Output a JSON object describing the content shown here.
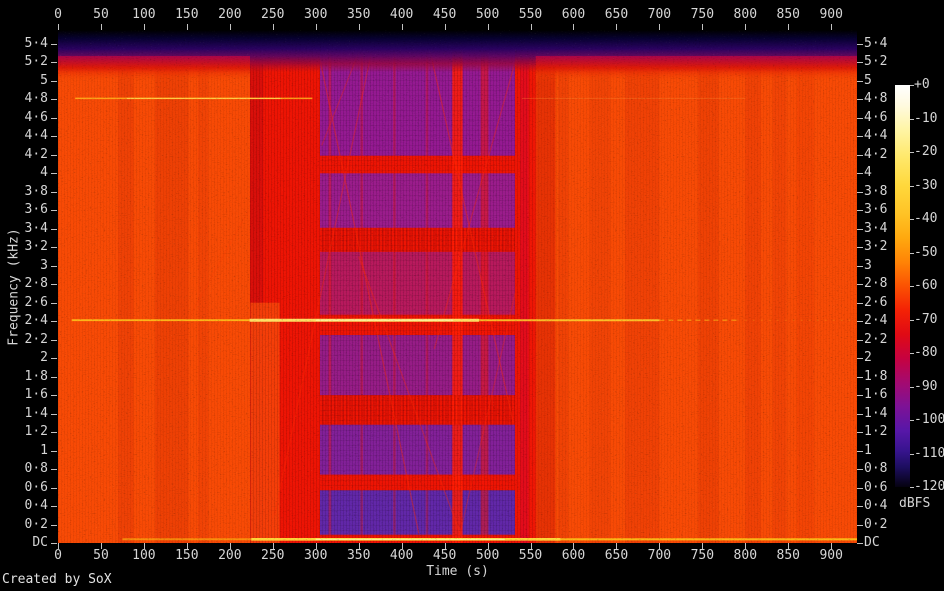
{
  "credit": {
    "text": "Created by SoX"
  },
  "chart_data": {
    "type": "heatmap",
    "subtype": "audio-spectrogram",
    "title": "",
    "xlabel": "Time (s)",
    "ylabel": "Frequency (kHz)",
    "x_range": [
      0,
      930
    ],
    "y_range_khz": [
      0,
      5.55
    ],
    "x_ticks": [
      0,
      50,
      100,
      150,
      200,
      250,
      300,
      350,
      400,
      450,
      500,
      550,
      600,
      650,
      700,
      750,
      800,
      850,
      900
    ],
    "y_tick_labels": [
      "5·4",
      "5·2",
      "5",
      "4·8",
      "4·6",
      "4·4",
      "4·2",
      "4",
      "3·8",
      "3·6",
      "3·4",
      "3·2",
      "3",
      "2·8",
      "2·6",
      "2·4",
      "2·2",
      "2",
      "1·8",
      "1·6",
      "1·4",
      "1·2",
      "1",
      "0·8",
      "0·6",
      "0·4",
      "0·2",
      "DC"
    ],
    "grid": false,
    "legend_position": "right-colorbar",
    "colorbar": {
      "label": "dBFS",
      "tick_labels": [
        "+0",
        "-10",
        "-20",
        "-30",
        "-40",
        "-50",
        "-60",
        "-70",
        "-80",
        "-90",
        "-100",
        "-110",
        "-120"
      ],
      "range_db": [
        0,
        -120
      ],
      "stops": [
        [
          0,
          "#ffffff"
        ],
        [
          0.05,
          "#fffae0"
        ],
        [
          0.11,
          "#fff5a6"
        ],
        [
          0.18,
          "#ffe86a"
        ],
        [
          0.25,
          "#ffd83c"
        ],
        [
          0.32,
          "#ffc326"
        ],
        [
          0.38,
          "#ffa90f"
        ],
        [
          0.44,
          "#ff8406"
        ],
        [
          0.5,
          "#fb5202"
        ],
        [
          0.56,
          "#f42205"
        ],
        [
          0.62,
          "#e00a14"
        ],
        [
          0.68,
          "#c60240"
        ],
        [
          0.74,
          "#a40a70"
        ],
        [
          0.8,
          "#7d1296"
        ],
        [
          0.86,
          "#5717a8"
        ],
        [
          0.91,
          "#37148e"
        ],
        [
          0.95,
          "#1d0e60"
        ],
        [
          1,
          "#050210"
        ]
      ]
    },
    "palette": {
      "background_orange": "#f84a05",
      "quiet_red": "#ee1404",
      "stripe_red": "#e23505"
    },
    "background_level_dbfs": -42,
    "regions": [
      {
        "name": "stripe-left-1",
        "t": [
          70,
          88
        ],
        "f": [
          0,
          5.55
        ],
        "color": "#e23505",
        "opacity": 0.4,
        "level_dbfs": -47
      },
      {
        "name": "stripe-left-2",
        "t": [
          113,
          152
        ],
        "f": [
          0,
          5.55
        ],
        "color": "#e23505",
        "opacity": 0.45,
        "level_dbfs": -47
      },
      {
        "name": "stripe-left-3",
        "t": [
          163,
          175
        ],
        "f": [
          0,
          5.55
        ],
        "color": "#e23505",
        "opacity": 0.3,
        "level_dbfs": -46
      },
      {
        "name": "quiet-segment",
        "t": [
          223.5,
          556
        ],
        "f": [
          0,
          5.55
        ],
        "color": "#ee1404",
        "opacity": 1,
        "level_dbfs": -55
      },
      {
        "name": "quiet-left-edge",
        "t": [
          223.5,
          239
        ],
        "f": [
          0,
          5.55
        ],
        "color": "#c40a10",
        "opacity": 0.5,
        "level_dbfs": -60
      },
      {
        "name": "orange-notch",
        "t": [
          224,
          258
        ],
        "f": [
          0,
          2.6
        ],
        "color": "#f8490a",
        "opacity": 0.8,
        "level_dbfs": -43
      },
      {
        "name": "low-level-4.2-5.4k",
        "t": [
          305,
          532
        ],
        "f": [
          4.19,
          5.4
        ],
        "color": "#8d1a9e",
        "opacity": 0.92,
        "level_dbfs": -78
      },
      {
        "name": "low-level-3.4-4k",
        "t": [
          305,
          532
        ],
        "f": [
          3.41,
          4.0
        ],
        "color": "#911d9b",
        "opacity": 0.9,
        "level_dbfs": -78
      },
      {
        "name": "low-level-2.5-3.15k",
        "t": [
          305,
          532
        ],
        "f": [
          2.47,
          3.15
        ],
        "color": "#aa1a74",
        "opacity": 0.8,
        "level_dbfs": -70
      },
      {
        "name": "low-level-1.6-2.25k",
        "t": [
          305,
          532
        ],
        "f": [
          1.6,
          2.25
        ],
        "color": "#8d1d96",
        "opacity": 0.9,
        "level_dbfs": -78
      },
      {
        "name": "low-level-0.75-1.3k",
        "t": [
          305,
          532
        ],
        "f": [
          0.74,
          1.28
        ],
        "color": "#7a22a6",
        "opacity": 0.92,
        "level_dbfs": -85
      },
      {
        "name": "low-level-0.1-0.6k",
        "t": [
          305,
          532
        ],
        "f": [
          0.09,
          0.57
        ],
        "color": "#5a28b2",
        "opacity": 0.95,
        "level_dbfs": -92
      },
      {
        "name": "red-column-1",
        "t": [
          459,
          471
        ],
        "f": [
          0,
          5.55
        ],
        "color": "#ff1c04",
        "opacity": 0.85,
        "level_dbfs": -52
      },
      {
        "name": "red-column-2",
        "t": [
          492,
          501
        ],
        "f": [
          0,
          5.55
        ],
        "color": "#f81404",
        "opacity": 0.5,
        "level_dbfs": -55
      },
      {
        "name": "red-line-a",
        "t": [
          315,
          318
        ],
        "f": [
          0,
          5.55
        ],
        "color": "#f81404",
        "opacity": 0.35,
        "level_dbfs": -58
      },
      {
        "name": "red-line-b",
        "t": [
          352,
          355
        ],
        "f": [
          0,
          5.55
        ],
        "color": "#f81404",
        "opacity": 0.3,
        "level_dbfs": -58
      },
      {
        "name": "red-line-c",
        "t": [
          390,
          393
        ],
        "f": [
          0,
          5.55
        ],
        "color": "#f81404",
        "opacity": 0.3,
        "level_dbfs": -58
      },
      {
        "name": "red-line-d",
        "t": [
          428,
          431
        ],
        "f": [
          0,
          5.55
        ],
        "color": "#f81404",
        "opacity": 0.3,
        "level_dbfs": -58
      },
      {
        "name": "crimson-column",
        "t": [
          538,
          548
        ],
        "f": [
          0,
          5.55
        ],
        "color": "#e00a20",
        "opacity": 0.85,
        "level_dbfs": -60
      },
      {
        "name": "crimson-fade",
        "t": [
          548,
          557
        ],
        "f": [
          0,
          5.55
        ],
        "color": "#f01806",
        "opacity": 0.6,
        "level_dbfs": -55
      },
      {
        "name": "post-segment-band",
        "t": [
          557,
          579
        ],
        "f": [
          0,
          5.55
        ],
        "color": "#d81f04",
        "opacity": 0.55,
        "level_dbfs": -50
      },
      {
        "name": "stripe-right-1",
        "t": [
          582,
          594
        ],
        "f": [
          0,
          5.55
        ],
        "color": "#e23505",
        "opacity": 0.35,
        "level_dbfs": -46
      },
      {
        "name": "stripe-right-2",
        "t": [
          619,
          643
        ],
        "f": [
          0,
          5.55
        ],
        "color": "#e23505",
        "opacity": 0.3,
        "level_dbfs": -46
      },
      {
        "name": "stripe-right-3",
        "t": [
          660,
          700
        ],
        "f": [
          0,
          5.55
        ],
        "color": "#e23505",
        "opacity": 0.38,
        "level_dbfs": -47
      },
      {
        "name": "stripe-right-4",
        "t": [
          745,
          769
        ],
        "f": [
          0,
          5.55
        ],
        "color": "#e23505",
        "opacity": 0.42,
        "level_dbfs": -47
      },
      {
        "name": "stripe-right-5",
        "t": [
          800,
          818
        ],
        "f": [
          0,
          5.55
        ],
        "color": "#e23505",
        "opacity": 0.38,
        "level_dbfs": -47
      },
      {
        "name": "stripe-right-6",
        "t": [
          832,
          848
        ],
        "f": [
          0,
          5.55
        ],
        "color": "#e23505",
        "opacity": 0.32,
        "level_dbfs": -46
      },
      {
        "name": "stripe-right-7",
        "t": [
          860,
          880
        ],
        "f": [
          0,
          5.55
        ],
        "color": "#e23505",
        "opacity": 0.25,
        "level_dbfs": -45
      }
    ],
    "texture_bands": [
      {
        "name": "chatter-band-3.2k",
        "t": [
          305,
          532
        ],
        "f": [
          3.15,
          3.41
        ]
      },
      {
        "name": "chatter-band-1.4k",
        "t": [
          305,
          532
        ],
        "f": [
          1.28,
          1.6
        ]
      }
    ],
    "tones": [
      {
        "name": "harmonic-4.8khz",
        "f": 4.81,
        "segments": [
          {
            "t": [
              20,
              296
            ],
            "color": "#ffb41e",
            "width": 1.5,
            "opacity": 0.85
          },
          {
            "t": [
              80,
              260
            ],
            "color": "#ffd750",
            "width": 1,
            "opacity": 0.9
          },
          {
            "t": [
              540,
              800
            ],
            "color": "#ff9838",
            "width": 1,
            "opacity": 0.3
          }
        ]
      },
      {
        "name": "steady-tone-2.4khz",
        "f": 2.41,
        "segments": [
          {
            "t": [
              16,
              223
            ],
            "color": "#ffc81e",
            "width": 1.8,
            "opacity": 0.85
          },
          {
            "t": [
              223,
              490
            ],
            "color": "#ffe96a",
            "width": 3,
            "opacity": 0.95
          },
          {
            "t": [
              300,
              460
            ],
            "color": "#fff7b0",
            "width": 1.2,
            "opacity": 0.9
          },
          {
            "t": [
              490,
              700
            ],
            "color": "#ffd530",
            "width": 2,
            "opacity": 0.85
          },
          {
            "t": [
              700,
              790
            ],
            "color": "#ffc01c",
            "width": 1.5,
            "opacity": 0.5,
            "dash": "5 4"
          },
          {
            "t": [
              790,
              930
            ],
            "color": "#ffb81a",
            "width": 1,
            "opacity": 0.25,
            "dash": "2 6"
          }
        ]
      },
      {
        "name": "dc-hum-line",
        "f": 0.04,
        "segments": [
          {
            "t": [
              75,
              225
            ],
            "color": "#ffc814",
            "width": 2,
            "opacity": 0.55
          },
          {
            "t": [
              225,
              585
            ],
            "color": "#ffdf3c",
            "width": 2.6,
            "opacity": 0.95
          },
          {
            "t": [
              300,
              520
            ],
            "color": "#fff6a8",
            "width": 1.2,
            "opacity": 0.9
          },
          {
            "t": [
              585,
              930
            ],
            "color": "#ffd41c",
            "width": 2.2,
            "opacity": 0.8
          }
        ]
      }
    ],
    "sweeps": [
      {
        "from": [
          300,
          5.45
        ],
        "to": [
          420,
          0.1
        ],
        "opacity": 0.4
      },
      {
        "from": [
          252,
          0.3
        ],
        "to": [
          368,
          5.45
        ],
        "opacity": 0.35
      },
      {
        "from": [
          430,
          5.45
        ],
        "to": [
          530,
          1.3
        ],
        "opacity": 0.4
      },
      {
        "from": [
          532,
          5.2
        ],
        "to": [
          438,
          2.1
        ],
        "opacity": 0.35
      },
      {
        "from": [
          350,
          3.1
        ],
        "to": [
          470,
          0.05
        ],
        "opacity": 0.35
      },
      {
        "from": [
          468,
          0.1
        ],
        "to": [
          532,
          2.7
        ],
        "opacity": 0.3
      },
      {
        "from": [
          307,
          4.3
        ],
        "to": [
          356,
          5.45
        ],
        "opacity": 0.3
      },
      {
        "from": [
          150,
          2.4
        ],
        "to": [
          222,
          3.6
        ],
        "opacity": 0.12
      }
    ],
    "nyquist_rolloff": {
      "f_start": 5.05,
      "level_at_top_dbfs": -120
    }
  }
}
